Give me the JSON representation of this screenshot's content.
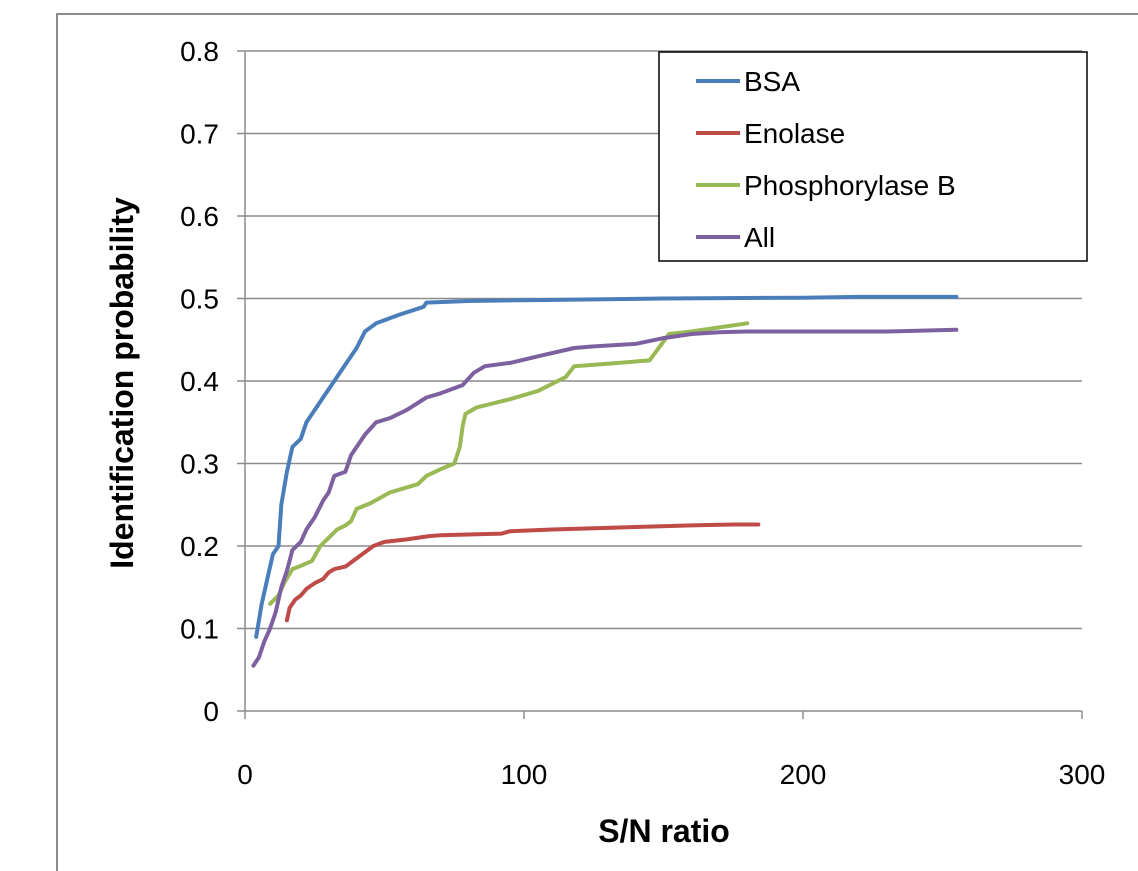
{
  "chart_data": {
    "type": "line",
    "title": "",
    "xlabel": "S/N ratio",
    "ylabel": "Identification probability",
    "xlim": [
      0,
      300
    ],
    "ylim": [
      0,
      0.8
    ],
    "xticks": [
      0,
      100,
      200,
      300
    ],
    "yticks": [
      0,
      0.1,
      0.2,
      0.3,
      0.4,
      0.5,
      0.6,
      0.7,
      0.8
    ],
    "xtick_labels": [
      "0",
      "100",
      "200",
      "300"
    ],
    "ytick_labels": [
      "0",
      "0.1",
      "0.2",
      "0.3",
      "0.4",
      "0.5",
      "0.6",
      "0.7",
      "0.8"
    ],
    "grid": "horizontal",
    "legend_position": "top-right",
    "series": [
      {
        "name": "BSA",
        "color": "#4a7ebb",
        "x": [
          4,
          6,
          8,
          10,
          12,
          13,
          15,
          17,
          20,
          22,
          24,
          28,
          32,
          36,
          40,
          43,
          47,
          55,
          64,
          65,
          80,
          100,
          150,
          200,
          220,
          250,
          255
        ],
        "y": [
          0.09,
          0.13,
          0.16,
          0.19,
          0.2,
          0.25,
          0.29,
          0.32,
          0.33,
          0.35,
          0.36,
          0.38,
          0.4,
          0.42,
          0.44,
          0.46,
          0.47,
          0.48,
          0.49,
          0.495,
          0.497,
          0.498,
          0.5,
          0.501,
          0.502,
          0.502,
          0.502
        ]
      },
      {
        "name": "Enolase",
        "color": "#be4b48",
        "x": [
          15,
          16,
          18,
          20,
          22,
          25,
          28,
          30,
          32,
          36,
          38,
          40,
          44,
          46,
          50,
          58,
          66,
          70,
          80,
          92,
          95,
          110,
          130,
          140,
          160,
          175,
          184
        ],
        "y": [
          0.11,
          0.125,
          0.135,
          0.14,
          0.148,
          0.155,
          0.16,
          0.168,
          0.172,
          0.175,
          0.18,
          0.185,
          0.195,
          0.2,
          0.205,
          0.208,
          0.212,
          0.213,
          0.214,
          0.215,
          0.218,
          0.22,
          0.222,
          0.223,
          0.225,
          0.226,
          0.226
        ]
      },
      {
        "name": "Phosphorylase B",
        "color": "#98b954",
        "x": [
          9,
          12,
          14,
          17,
          20,
          24,
          27,
          30,
          33,
          36,
          38,
          40,
          45,
          52,
          62,
          65,
          70,
          75,
          77,
          78,
          79,
          83,
          95,
          105,
          115,
          118,
          130,
          145,
          152,
          160,
          170,
          180
        ],
        "y": [
          0.13,
          0.14,
          0.155,
          0.172,
          0.176,
          0.182,
          0.2,
          0.21,
          0.22,
          0.225,
          0.23,
          0.245,
          0.252,
          0.265,
          0.275,
          0.285,
          0.293,
          0.3,
          0.32,
          0.345,
          0.36,
          0.368,
          0.378,
          0.388,
          0.405,
          0.418,
          0.421,
          0.425,
          0.457,
          0.46,
          0.465,
          0.47
        ]
      },
      {
        "name": "All",
        "color": "#7d60a0",
        "x": [
          3,
          5,
          7,
          9,
          11,
          13,
          15,
          17,
          20,
          22,
          25,
          28,
          30,
          32,
          36,
          38,
          40,
          43,
          47,
          52,
          58,
          65,
          70,
          78,
          82,
          86,
          95,
          105,
          118,
          125,
          140,
          150,
          160,
          170,
          180,
          200,
          230,
          255
        ],
        "y": [
          0.055,
          0.065,
          0.085,
          0.1,
          0.12,
          0.15,
          0.17,
          0.195,
          0.205,
          0.22,
          0.235,
          0.255,
          0.265,
          0.285,
          0.29,
          0.31,
          0.32,
          0.335,
          0.35,
          0.355,
          0.365,
          0.38,
          0.385,
          0.395,
          0.41,
          0.418,
          0.422,
          0.43,
          0.44,
          0.442,
          0.445,
          0.452,
          0.457,
          0.459,
          0.46,
          0.46,
          0.46,
          0.462
        ]
      }
    ]
  }
}
